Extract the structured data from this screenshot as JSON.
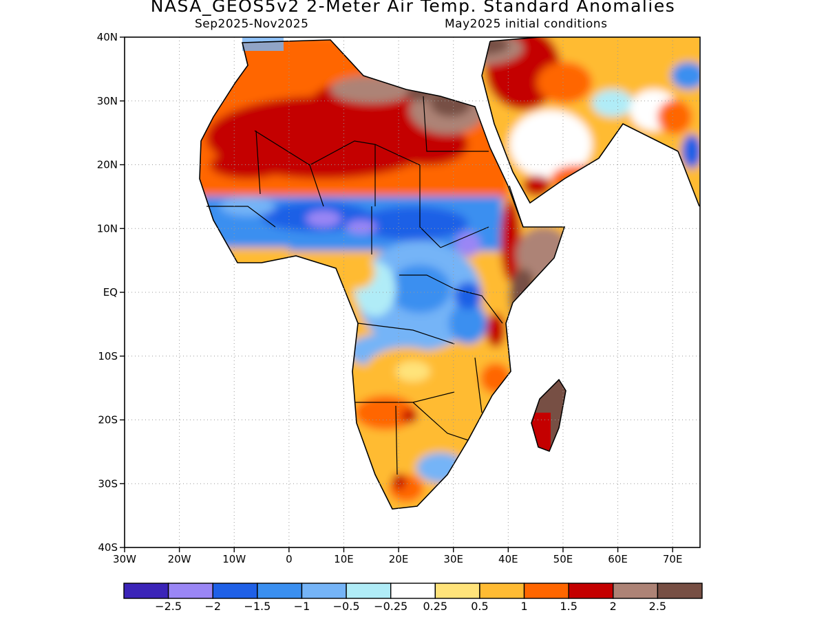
{
  "title": "NASA_GEOS5v2 2-Meter Air Temp. Standard Anomalies",
  "subtitle_left": "Sep2025-Nov2025",
  "subtitle_right": "May2025 initial conditions",
  "map": {
    "lat_range": [
      -40,
      40
    ],
    "lon_range": [
      -30,
      75
    ],
    "lat_ticks": [
      {
        "value": 40,
        "label": "40N"
      },
      {
        "value": 30,
        "label": "30N"
      },
      {
        "value": 20,
        "label": "20N"
      },
      {
        "value": 10,
        "label": "10N"
      },
      {
        "value": 0,
        "label": "EQ"
      },
      {
        "value": -10,
        "label": "10S"
      },
      {
        "value": -20,
        "label": "20S"
      },
      {
        "value": -30,
        "label": "30S"
      },
      {
        "value": -40,
        "label": "40S"
      }
    ],
    "lon_ticks": [
      {
        "value": -30,
        "label": "30W"
      },
      {
        "value": -20,
        "label": "20W"
      },
      {
        "value": -10,
        "label": "10W"
      },
      {
        "value": 0,
        "label": "0"
      },
      {
        "value": 10,
        "label": "10E"
      },
      {
        "value": 20,
        "label": "20E"
      },
      {
        "value": 30,
        "label": "30E"
      },
      {
        "value": 40,
        "label": "40E"
      },
      {
        "value": 50,
        "label": "50E"
      },
      {
        "value": 60,
        "label": "60E"
      },
      {
        "value": 70,
        "label": "70E"
      }
    ],
    "grid": true
  },
  "colorbar": {
    "colors": [
      "#3b24b8",
      "#9a86f5",
      "#1f60e6",
      "#3a8ff0",
      "#75b4f7",
      "#b0ecf7",
      "#ffffff",
      "#ffe37a",
      "#ffbb33",
      "#ff6600",
      "#c40000",
      "#ad8376",
      "#774f44"
    ],
    "labels": [
      "-2.5",
      "-2",
      "-1.5",
      "-1",
      "-0.5",
      "-0.25",
      "0.25",
      "0.5",
      "1",
      "1.5",
      "2",
      "2.5"
    ]
  }
}
